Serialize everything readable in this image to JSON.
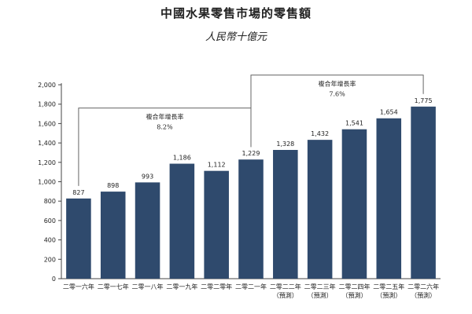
{
  "chart_data": {
    "type": "bar",
    "title": "中國水果零售市場的零售額",
    "subtitle": "人民幣十億元",
    "categories": [
      [
        "二零一六年"
      ],
      [
        "二零一七年"
      ],
      [
        "二零一八年"
      ],
      [
        "二零一九年"
      ],
      [
        "二零二零年"
      ],
      [
        "二零二一年"
      ],
      [
        "二零二二年",
        "（預測）"
      ],
      [
        "二零二三年",
        "（預測）"
      ],
      [
        "二零二四年",
        "（預測）"
      ],
      [
        "二零二五年",
        "（預測）"
      ],
      [
        "二零二六年",
        "（預測）"
      ]
    ],
    "values": [
      827,
      898,
      993,
      1186,
      1112,
      1229,
      1328,
      1432,
      1541,
      1654,
      1775
    ],
    "value_labels": [
      "827",
      "898",
      "993",
      "1,186",
      "1,112",
      "1,229",
      "1,328",
      "1,432",
      "1,541",
      "1,654",
      "1,775"
    ],
    "yticks": [
      "0",
      "200",
      "400",
      "600",
      "800",
      "1,000",
      "1,200",
      "1,400",
      "1,600",
      "1,800",
      "2,000"
    ],
    "ylim": [
      0,
      2000
    ],
    "bar_color": "#2f4a6d",
    "annotations": [
      {
        "label": "複合年增長率",
        "value": "8.2%",
        "from_index": 0,
        "to_index": 5
      },
      {
        "label": "複合年增長率",
        "value": "7.6%",
        "from_index": 5,
        "to_index": 10
      }
    ]
  }
}
